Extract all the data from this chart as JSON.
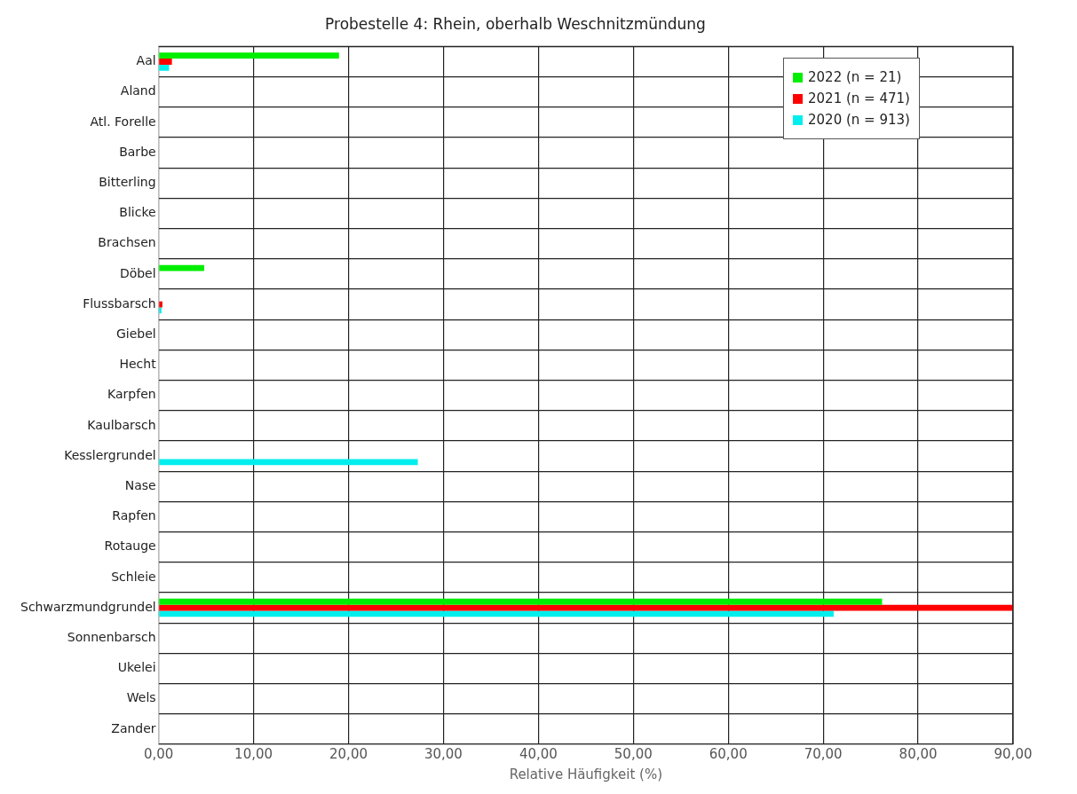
{
  "chart_data": {
    "type": "bar",
    "orientation": "horizontal",
    "title": "Probestelle 4: Rhein, oberhalb Weschnitzmündung",
    "xlabel": "Relative Häufigkeit (%)",
    "categories": [
      "Aal",
      "Aland",
      "Atl. Forelle",
      "Barbe",
      "Bitterling",
      "Blicke",
      "Brachsen",
      "Döbel",
      "Flussbarsch",
      "Giebel",
      "Hecht",
      "Karpfen",
      "Kaulbarsch",
      "Kesslergrundel",
      "Nase",
      "Rapfen",
      "Rotauge",
      "Schleie",
      "Schwarzmundgrundel",
      "Sonnenbarsch",
      "Ukelei",
      "Wels",
      "Zander"
    ],
    "series": [
      {
        "name": "2022 (n = 21)",
        "color": "#00ee00",
        "values": [
          19.0,
          0,
          0,
          0,
          0,
          0,
          0,
          4.8,
          0,
          0,
          0,
          0,
          0,
          0,
          0,
          0,
          0,
          0,
          76.2,
          0,
          0,
          0,
          0
        ]
      },
      {
        "name": "2021 (n = 471)",
        "color": "#ff0000",
        "values": [
          1.4,
          0,
          0,
          0,
          0,
          0,
          0,
          0,
          0.4,
          0,
          0,
          0,
          0,
          0,
          0,
          0,
          0,
          0,
          90,
          0,
          0,
          0,
          0
        ]
      },
      {
        "name": "2020 (n = 913)",
        "color": "#00eeee",
        "values": [
          1.1,
          0,
          0,
          0,
          0,
          0,
          0,
          0,
          0.3,
          0,
          0,
          0,
          0,
          27.3,
          0,
          0,
          0,
          0,
          71.1,
          0,
          0,
          0,
          0
        ]
      }
    ],
    "xlim": [
      0,
      90
    ],
    "xticks": [
      {
        "value": 0,
        "label": "0,00"
      },
      {
        "value": 10,
        "label": "10,00"
      },
      {
        "value": 20,
        "label": "20,00"
      },
      {
        "value": 30,
        "label": "30,00"
      },
      {
        "value": 40,
        "label": "40,00"
      },
      {
        "value": 50,
        "label": "50,00"
      },
      {
        "value": 60,
        "label": "60,00"
      },
      {
        "value": 70,
        "label": "70,00"
      },
      {
        "value": 80,
        "label": "80,00"
      },
      {
        "value": 90,
        "label": "90,00"
      }
    ],
    "grid": true,
    "legend": "top right"
  }
}
